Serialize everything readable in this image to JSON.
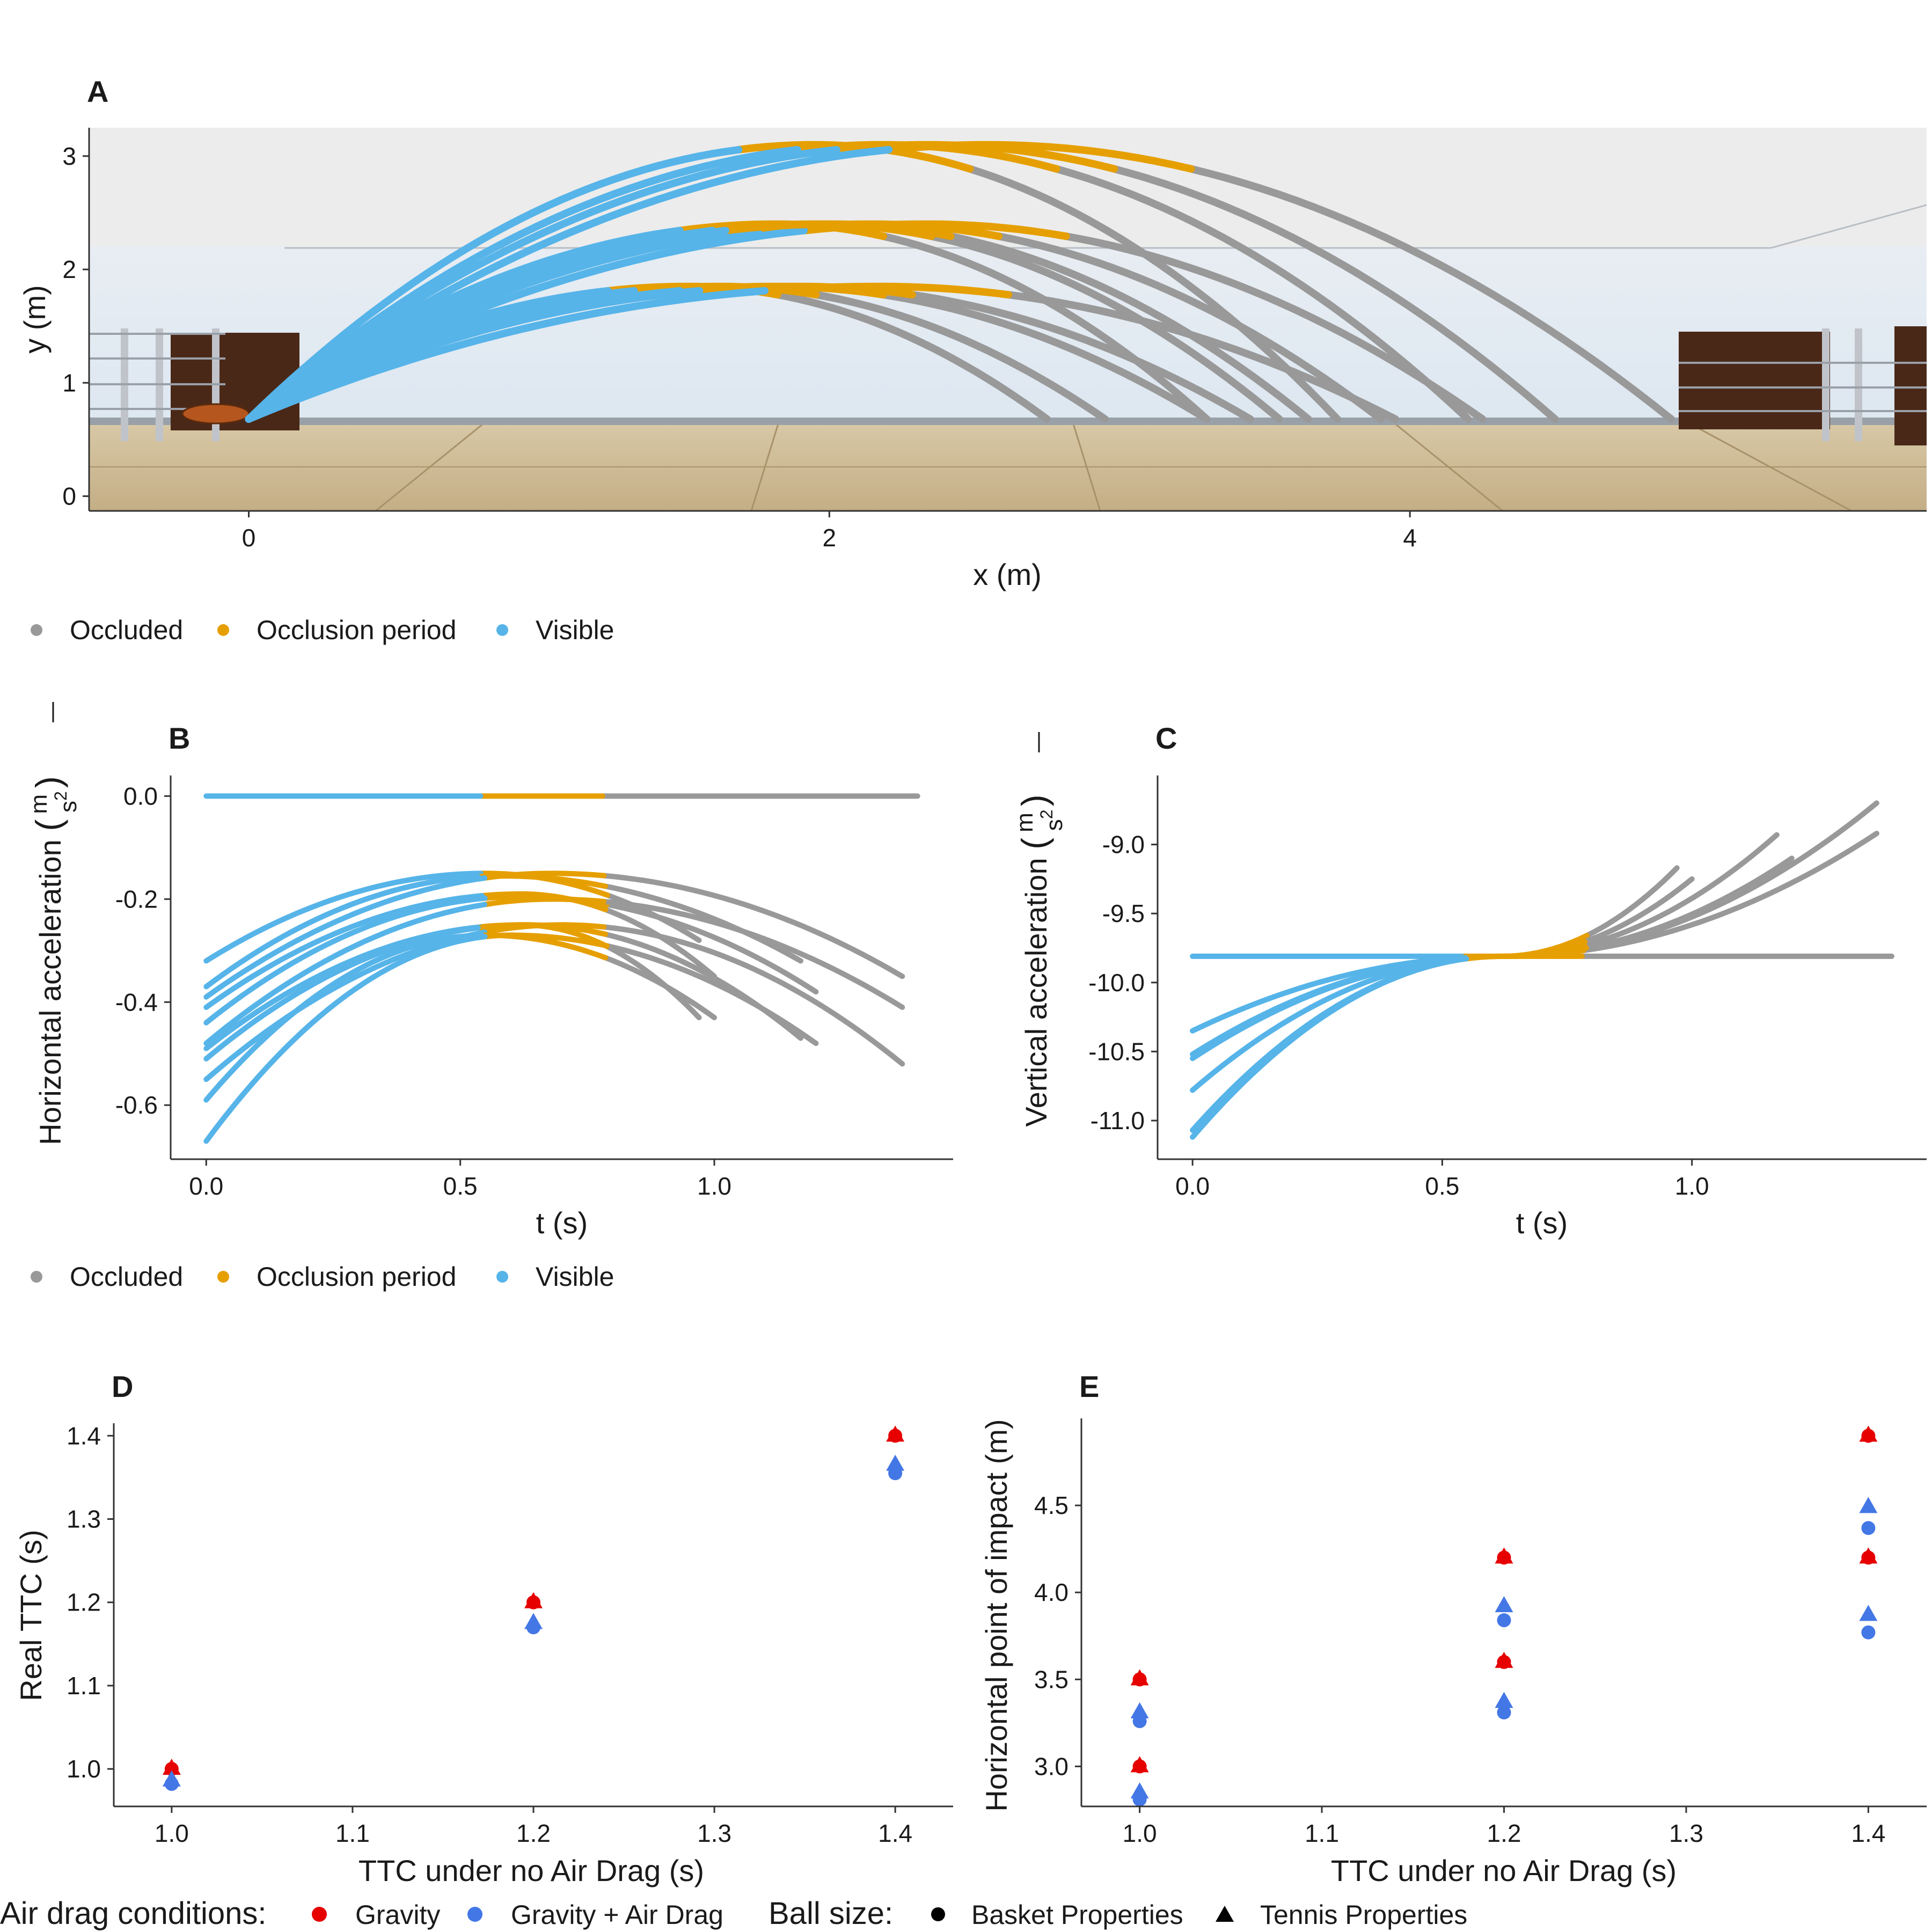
{
  "figure": {
    "panels": {
      "A": "A",
      "B": "B",
      "C": "C",
      "D": "D",
      "E": "E"
    },
    "legend_visibility": {
      "items": [
        {
          "label": "Occluded",
          "color": "#999999"
        },
        {
          "label": "Occlusion period",
          "color": "#E69F00"
        },
        {
          "label": "Visible",
          "color": "#56B4E9"
        }
      ]
    },
    "legend_bottom": {
      "air_drag_title": "Air drag conditions:",
      "air_drag_items": [
        {
          "label": "Gravity",
          "color": "#E60000"
        },
        {
          "label": "Gravity + Air Drag",
          "color": "#4477E6"
        }
      ],
      "ball_size_title": "Ball size:",
      "ball_size_items": [
        {
          "label": "Basket Properties",
          "shape": "circle"
        },
        {
          "label": "Tennis Properties",
          "shape": "triangle"
        }
      ]
    }
  },
  "chart_data": [
    {
      "panel": "A",
      "type": "line",
      "xlabel": "x (m)",
      "ylabel": "y (m)",
      "xlim": [
        -0.55,
        5.78
      ],
      "ylim": [
        -0.13,
        3.25
      ],
      "xticks": [
        0,
        2,
        4
      ],
      "yticks": [
        0,
        1,
        2,
        3
      ],
      "background": "gym scene: floor, walls, padded rings, ball at launch point",
      "launch_point": [
        0,
        0.68
      ],
      "series": [
        {
          "name": "trajectories",
          "apex_heights": [
            1.85,
            2.4,
            3.1
          ],
          "impact_x": [
            2.75,
            2.9,
            3.2,
            3.35,
            3.5,
            3.9,
            4.2,
            4.5,
            4.9
          ],
          "values_note": "parabolic arcs; first segment Visible, short Occlusion period after ~0.55 s, remainder Occluded"
        }
      ]
    },
    {
      "panel": "B",
      "type": "line",
      "xlabel": "t (s)",
      "ylabel": "Horizontal acceleration (m/s²)",
      "ylabel_main": "Horizontal acceleration ",
      "ylabel_unit_num": "m",
      "ylabel_unit_den": "s",
      "ylabel_unit_exp": "2",
      "xlim": [
        -0.07,
        1.47
      ],
      "ylim": [
        -0.705,
        0.04
      ],
      "xticks": [
        0.0,
        0.5,
        1.0
      ],
      "yticks": [
        0.0,
        -0.2,
        -0.4,
        -0.6
      ],
      "xtick_labels": [
        "0.0",
        "0.5",
        "1.0"
      ],
      "ytick_labels": [
        "0.0",
        "-0.2",
        "-0.4",
        "-0.6"
      ],
      "series": [
        {
          "name": "gravity",
          "t_end": 1.4,
          "start": 0.0,
          "peak": 0.0,
          "tpeak": 0.6,
          "end": 0.0
        },
        {
          "name": "drag",
          "t_end": 0.97,
          "start": -0.32,
          "peak": -0.15,
          "tpeak": 0.55,
          "end": -0.28
        },
        {
          "name": "drag",
          "t_end": 1.17,
          "start": -0.37,
          "peak": -0.155,
          "tpeak": 0.58,
          "end": -0.32
        },
        {
          "name": "drag",
          "t_end": 1.37,
          "start": -0.39,
          "peak": -0.15,
          "tpeak": 0.68,
          "end": -0.35
        },
        {
          "name": "drag",
          "t_end": 1.0,
          "start": -0.41,
          "peak": -0.19,
          "tpeak": 0.62,
          "end": -0.35
        },
        {
          "name": "drag",
          "t_end": 1.2,
          "start": -0.44,
          "peak": -0.195,
          "tpeak": 0.62,
          "end": -0.38
        },
        {
          "name": "drag",
          "t_end": 1.37,
          "start": -0.48,
          "peak": -0.2,
          "tpeak": 0.68,
          "end": -0.41
        },
        {
          "name": "drag",
          "t_end": 0.97,
          "start": -0.49,
          "peak": -0.25,
          "tpeak": 0.62,
          "end": -0.43
        },
        {
          "name": "drag",
          "t_end": 1.17,
          "start": -0.51,
          "peak": -0.25,
          "tpeak": 0.63,
          "end": -0.47
        },
        {
          "name": "drag",
          "t_end": 1.37,
          "start": -0.55,
          "peak": -0.25,
          "tpeak": 0.7,
          "end": -0.52
        },
        {
          "name": "drag",
          "t_end": 1.0,
          "start": -0.59,
          "peak": -0.27,
          "tpeak": 0.55,
          "end": -0.43
        },
        {
          "name": "drag",
          "t_end": 1.2,
          "start": -0.67,
          "peak": -0.27,
          "tpeak": 0.6,
          "end": -0.48
        }
      ]
    },
    {
      "panel": "C",
      "type": "line",
      "xlabel": "t (s)",
      "ylabel": "Vertical acceleration (m/s²)",
      "ylabel_main": "Vertical acceleration ",
      "ylabel_unit_num": "m",
      "ylabel_unit_den": "s",
      "ylabel_unit_exp": "2",
      "xlim": [
        -0.07,
        1.47
      ],
      "ylim": [
        -11.28,
        -8.5
      ],
      "xticks": [
        0.0,
        0.5,
        1.0
      ],
      "yticks": [
        -9.0,
        -9.5,
        -10.0,
        -10.5,
        -11.0
      ],
      "xtick_labels": [
        "0.0",
        "0.5",
        "1.0"
      ],
      "ytick_labels": [
        "-9.0",
        "-9.5",
        "-10.0",
        "-10.5",
        "-11.0"
      ],
      "series": [
        {
          "name": "gravity",
          "t_end": 1.4,
          "start": -9.81,
          "end": -9.81
        },
        {
          "name": "drag",
          "t_end": 0.97,
          "start": -10.35,
          "end": -9.17
        },
        {
          "name": "drag",
          "t_end": 1.17,
          "start": -10.52,
          "end": -8.93
        },
        {
          "name": "drag",
          "t_end": 1.37,
          "start": -10.55,
          "end": -8.7
        },
        {
          "name": "drag",
          "t_end": 1.37,
          "start": -10.78,
          "end": -8.92
        },
        {
          "name": "drag",
          "t_end": 1.0,
          "start": -11.07,
          "end": -9.25
        },
        {
          "name": "drag",
          "t_end": 1.2,
          "start": -11.12,
          "end": -9.1
        }
      ]
    },
    {
      "panel": "D",
      "type": "scatter",
      "xlabel": "TTC under no Air Drag (s)",
      "ylabel": "Real TTC (s)",
      "xlim": [
        0.968,
        1.432
      ],
      "ylim": [
        0.955,
        1.415
      ],
      "xticks": [
        1.0,
        1.1,
        1.2,
        1.3,
        1.4
      ],
      "yticks": [
        1.0,
        1.1,
        1.2,
        1.3,
        1.4
      ],
      "xtick_labels": [
        "1.0",
        "1.1",
        "1.2",
        "1.3",
        "1.4"
      ],
      "ytick_labels": [
        "1.0",
        "1.1",
        "1.2",
        "1.3",
        "1.4"
      ],
      "points": [
        {
          "x": 1.0,
          "y": 1.0,
          "condition": "Gravity",
          "ball": "circle"
        },
        {
          "x": 1.0,
          "y": 1.0,
          "condition": "Gravity",
          "ball": "triangle"
        },
        {
          "x": 1.0,
          "y": 0.982,
          "condition": "Gravity + Air Drag",
          "ball": "circle"
        },
        {
          "x": 1.0,
          "y": 0.986,
          "condition": "Gravity + Air Drag",
          "ball": "triangle"
        },
        {
          "x": 1.2,
          "y": 1.2,
          "condition": "Gravity",
          "ball": "circle"
        },
        {
          "x": 1.2,
          "y": 1.2,
          "condition": "Gravity",
          "ball": "triangle"
        },
        {
          "x": 1.2,
          "y": 1.17,
          "condition": "Gravity + Air Drag",
          "ball": "circle"
        },
        {
          "x": 1.2,
          "y": 1.175,
          "condition": "Gravity + Air Drag",
          "ball": "triangle"
        },
        {
          "x": 1.4,
          "y": 1.4,
          "condition": "Gravity",
          "ball": "circle"
        },
        {
          "x": 1.4,
          "y": 1.4,
          "condition": "Gravity",
          "ball": "triangle"
        },
        {
          "x": 1.4,
          "y": 1.355,
          "condition": "Gravity + Air Drag",
          "ball": "circle"
        },
        {
          "x": 1.4,
          "y": 1.365,
          "condition": "Gravity + Air Drag",
          "ball": "triangle"
        }
      ]
    },
    {
      "panel": "E",
      "type": "scatter",
      "xlabel": "TTC under no Air Drag (s)",
      "ylabel": "Horizontal point of impact (m)",
      "xlim": [
        0.968,
        1.432
      ],
      "ylim": [
        2.77,
        5.0
      ],
      "xticks": [
        1.0,
        1.1,
        1.2,
        1.3,
        1.4
      ],
      "yticks": [
        3.0,
        3.5,
        4.0,
        4.5
      ],
      "xtick_labels": [
        "1.0",
        "1.1",
        "1.2",
        "1.3",
        "1.4"
      ],
      "ytick_labels": [
        "3.0",
        "3.5",
        "4.0",
        "4.5"
      ],
      "points": [
        {
          "x": 1.0,
          "y": 3.5,
          "condition": "Gravity",
          "ball": "circle"
        },
        {
          "x": 1.0,
          "y": 3.5,
          "condition": "Gravity",
          "ball": "triangle"
        },
        {
          "x": 1.0,
          "y": 3.0,
          "condition": "Gravity",
          "ball": "circle"
        },
        {
          "x": 1.0,
          "y": 3.0,
          "condition": "Gravity",
          "ball": "triangle"
        },
        {
          "x": 1.0,
          "y": 3.26,
          "condition": "Gravity + Air Drag",
          "ball": "circle"
        },
        {
          "x": 1.0,
          "y": 3.31,
          "condition": "Gravity + Air Drag",
          "ball": "triangle"
        },
        {
          "x": 1.0,
          "y": 2.81,
          "condition": "Gravity + Air Drag",
          "ball": "circle"
        },
        {
          "x": 1.0,
          "y": 2.85,
          "condition": "Gravity + Air Drag",
          "ball": "triangle"
        },
        {
          "x": 1.2,
          "y": 4.2,
          "condition": "Gravity",
          "ball": "circle"
        },
        {
          "x": 1.2,
          "y": 4.2,
          "condition": "Gravity",
          "ball": "triangle"
        },
        {
          "x": 1.2,
          "y": 3.6,
          "condition": "Gravity",
          "ball": "circle"
        },
        {
          "x": 1.2,
          "y": 3.6,
          "condition": "Gravity",
          "ball": "triangle"
        },
        {
          "x": 1.2,
          "y": 3.84,
          "condition": "Gravity + Air Drag",
          "ball": "circle"
        },
        {
          "x": 1.2,
          "y": 3.92,
          "condition": "Gravity + Air Drag",
          "ball": "triangle"
        },
        {
          "x": 1.2,
          "y": 3.31,
          "condition": "Gravity + Air Drag",
          "ball": "circle"
        },
        {
          "x": 1.2,
          "y": 3.37,
          "condition": "Gravity + Air Drag",
          "ball": "triangle"
        },
        {
          "x": 1.4,
          "y": 4.9,
          "condition": "Gravity",
          "ball": "circle"
        },
        {
          "x": 1.4,
          "y": 4.9,
          "condition": "Gravity",
          "ball": "triangle"
        },
        {
          "x": 1.4,
          "y": 4.2,
          "condition": "Gravity",
          "ball": "circle"
        },
        {
          "x": 1.4,
          "y": 4.2,
          "condition": "Gravity",
          "ball": "triangle"
        },
        {
          "x": 1.4,
          "y": 4.37,
          "condition": "Gravity + Air Drag",
          "ball": "circle"
        },
        {
          "x": 1.4,
          "y": 4.49,
          "condition": "Gravity + Air Drag",
          "ball": "triangle"
        },
        {
          "x": 1.4,
          "y": 3.77,
          "condition": "Gravity + Air Drag",
          "ball": "circle"
        },
        {
          "x": 1.4,
          "y": 3.87,
          "condition": "Gravity + Air Drag",
          "ball": "triangle"
        }
      ]
    }
  ]
}
